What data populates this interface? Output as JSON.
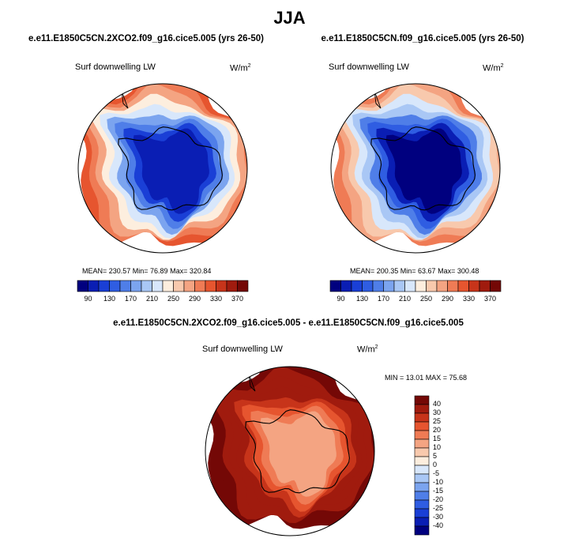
{
  "title": "JJA",
  "colors": {
    "abs_palette": [
      "#00007f",
      "#0a1eb4",
      "#1a3fd6",
      "#2f5de2",
      "#4f7ee8",
      "#7ba4ef",
      "#a9c7f5",
      "#d8e7fb",
      "#fdeede",
      "#f8c9ad",
      "#f4a482",
      "#ef7b55",
      "#e6552f",
      "#c7341a",
      "#a01b0e",
      "#740806"
    ],
    "diff_palette": [
      "#00007f",
      "#0a1eb4",
      "#1a3fd6",
      "#2f5de2",
      "#4f7ee8",
      "#7ba4ef",
      "#a9c7f5",
      "#d8e7fb",
      "#fdeede",
      "#f8c9ad",
      "#f4a482",
      "#ef7b55",
      "#e6552f",
      "#c7341a",
      "#a01b0e",
      "#740806"
    ],
    "land_outline": "#000000"
  },
  "chart_data": [
    {
      "type": "heatmap",
      "projection": "south-polar-stereographic",
      "title": "e.e11.E1850C5CN.2XCO2.f09_g16.cice5.005 (yrs 26-50)",
      "variable": "Surf downwelling LW",
      "units": "W/m",
      "units_exp": "2",
      "stats": "MEAN= 230.57  Min= 76.89  Max= 320.84",
      "mean": 230.57,
      "min": 76.89,
      "max": 320.84,
      "levels": [
        90,
        110,
        130,
        150,
        170,
        190,
        210,
        230,
        250,
        270,
        290,
        310,
        330,
        350,
        370
      ],
      "tick_labels": [
        "90",
        "130",
        "170",
        "210",
        "250",
        "290",
        "330",
        "370"
      ],
      "field_levels": [
        320,
        300,
        270,
        240,
        210,
        180,
        150,
        120,
        90
      ]
    },
    {
      "type": "heatmap",
      "projection": "south-polar-stereographic",
      "title": "e.e11.E1850C5CN.f09_g16.cice5.005 (yrs 26-50)",
      "variable": "Surf downwelling LW",
      "units": "W/m",
      "units_exp": "2",
      "stats": "MEAN= 200.35  Min= 63.67  Max= 300.48",
      "mean": 200.35,
      "min": 63.67,
      "max": 300.48,
      "levels": [
        90,
        110,
        130,
        150,
        170,
        190,
        210,
        230,
        250,
        270,
        290,
        310,
        330,
        350,
        370
      ],
      "tick_labels": [
        "90",
        "130",
        "170",
        "210",
        "250",
        "290",
        "330",
        "370"
      ],
      "field_levels": [
        300,
        280,
        250,
        220,
        190,
        160,
        130,
        100,
        70
      ]
    },
    {
      "type": "heatmap",
      "projection": "south-polar-stereographic",
      "title": "e.e11.E1850C5CN.2XCO2.f09_g16.cice5.005 - e.e11.E1850C5CN.f09_g16.cice5.005",
      "variable": "Surf downwelling LW",
      "units": "W/m",
      "units_exp": "2",
      "stats": "MIN =  13.01 MAX =  75.68",
      "min": 13.01,
      "max": 75.68,
      "levels": [
        -40,
        -30,
        -25,
        -20,
        -15,
        -10,
        -5,
        0,
        5,
        10,
        15,
        20,
        25,
        30,
        40
      ],
      "tick_labels": [
        "40",
        "30",
        "25",
        "20",
        "15",
        "10",
        "5",
        "0",
        "-5",
        "-10",
        "-15",
        "-20",
        "-25",
        "-30",
        "-40"
      ],
      "field_levels": [
        45,
        42,
        38,
        34,
        30,
        26,
        22,
        18,
        14
      ]
    }
  ]
}
